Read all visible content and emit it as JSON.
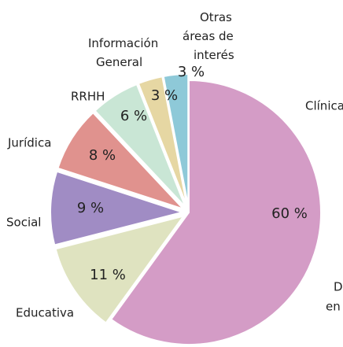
{
  "chart_data": {
    "type": "pie",
    "categories": [
      "Clínica",
      "Educativa",
      "Social",
      "Jurídica",
      "RRHH",
      "Información General",
      "Otras áreas de interés"
    ],
    "values": [
      60,
      11,
      9,
      8,
      6,
      3,
      3
    ],
    "value_labels": [
      "60 %",
      "11 %",
      "9 %",
      "8 %",
      "6 %",
      "3 %",
      "3 %"
    ],
    "colors": [
      "#d49cc6",
      "#dfe3c0",
      "#a08cc4",
      "#e0928e",
      "#c9e6d5",
      "#e6d7a3",
      "#8ec9d8"
    ],
    "annotation": [
      "D",
      "en"
    ]
  }
}
